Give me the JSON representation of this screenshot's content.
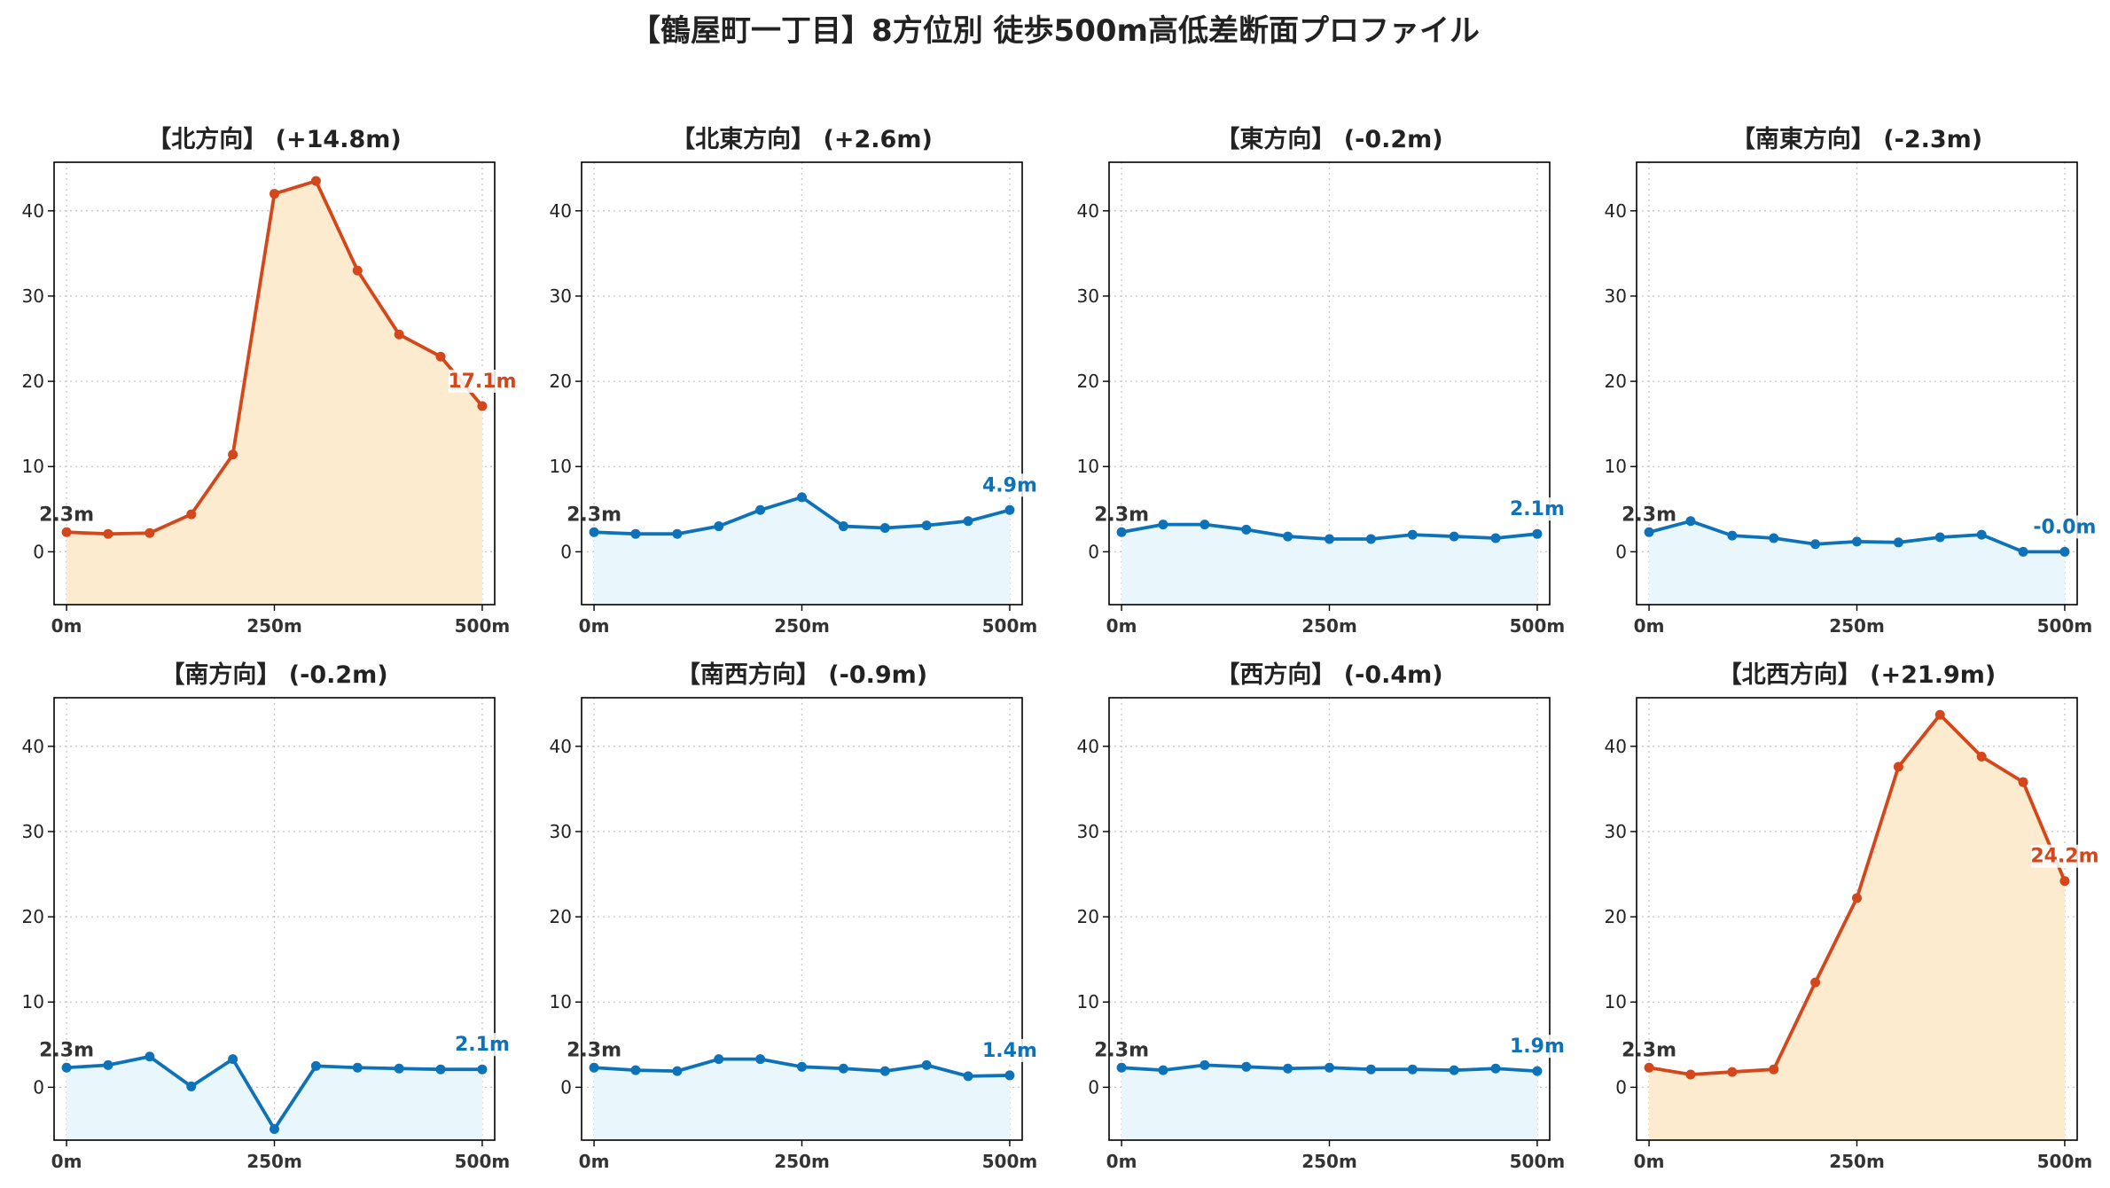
{
  "title": "【鶴屋町一丁目】8方位別 徒歩500m高低差断面プロファイル",
  "colors": {
    "up_line": "#d4471a",
    "up_fill": "#fdebcf",
    "down_line": "#0e72b8",
    "down_fill": "#e9f6fc",
    "grid": "#c8c8c8",
    "start_label": "#333333"
  },
  "chart_data": [
    {
      "type": "area",
      "title": "【北方向】 (+14.8m)",
      "trend": "up",
      "x": [
        0,
        50,
        100,
        150,
        200,
        250,
        300,
        350,
        400,
        450,
        500
      ],
      "values": [
        2.3,
        2.1,
        2.2,
        4.4,
        11.4,
        42.0,
        43.5,
        33.0,
        25.5,
        22.9,
        17.1
      ],
      "x_ticks": [
        0,
        250,
        500
      ],
      "x_tick_labels": [
        "0m",
        "250m",
        "500m"
      ],
      "y_ticks": [
        0,
        10,
        20,
        30,
        40
      ],
      "xlim": [
        -15,
        515
      ],
      "ylim": [
        -6.2,
        45.7
      ],
      "grid": true,
      "start_label": "2.3m",
      "end_label": "17.1m"
    },
    {
      "type": "area",
      "title": "【北東方向】 (+2.6m)",
      "trend": "down",
      "x": [
        0,
        50,
        100,
        150,
        200,
        250,
        300,
        350,
        400,
        450,
        500
      ],
      "values": [
        2.3,
        2.1,
        2.1,
        3.0,
        4.9,
        6.4,
        3.0,
        2.8,
        3.1,
        3.6,
        4.9
      ],
      "x_ticks": [
        0,
        250,
        500
      ],
      "x_tick_labels": [
        "0m",
        "250m",
        "500m"
      ],
      "y_ticks": [
        0,
        10,
        20,
        30,
        40
      ],
      "xlim": [
        -15,
        515
      ],
      "ylim": [
        -6.2,
        45.7
      ],
      "grid": true,
      "start_label": "2.3m",
      "end_label": "4.9m"
    },
    {
      "type": "area",
      "title": "【東方向】 (-0.2m)",
      "trend": "down",
      "x": [
        0,
        50,
        100,
        150,
        200,
        250,
        300,
        350,
        400,
        450,
        500
      ],
      "values": [
        2.3,
        3.2,
        3.2,
        2.6,
        1.8,
        1.5,
        1.5,
        2.0,
        1.8,
        1.6,
        2.1
      ],
      "x_ticks": [
        0,
        250,
        500
      ],
      "x_tick_labels": [
        "0m",
        "250m",
        "500m"
      ],
      "y_ticks": [
        0,
        10,
        20,
        30,
        40
      ],
      "xlim": [
        -15,
        515
      ],
      "ylim": [
        -6.2,
        45.7
      ],
      "grid": true,
      "start_label": "2.3m",
      "end_label": "2.1m"
    },
    {
      "type": "area",
      "title": "【南東方向】 (-2.3m)",
      "trend": "down",
      "x": [
        0,
        50,
        100,
        150,
        200,
        250,
        300,
        350,
        400,
        450,
        500
      ],
      "values": [
        2.3,
        3.6,
        1.9,
        1.6,
        0.9,
        1.2,
        1.1,
        1.7,
        2.0,
        0.0,
        0.0
      ],
      "x_ticks": [
        0,
        250,
        500
      ],
      "x_tick_labels": [
        "0m",
        "250m",
        "500m"
      ],
      "y_ticks": [
        0,
        10,
        20,
        30,
        40
      ],
      "xlim": [
        -15,
        515
      ],
      "ylim": [
        -6.2,
        45.7
      ],
      "grid": true,
      "start_label": "2.3m",
      "end_label": "-0.0m"
    },
    {
      "type": "area",
      "title": "【南方向】 (-0.2m)",
      "trend": "down",
      "x": [
        0,
        50,
        100,
        150,
        200,
        250,
        300,
        350,
        400,
        450,
        500
      ],
      "values": [
        2.3,
        2.6,
        3.6,
        0.1,
        3.3,
        -4.9,
        2.5,
        2.3,
        2.2,
        2.1,
        2.1
      ],
      "x_ticks": [
        0,
        250,
        500
      ],
      "x_tick_labels": [
        "0m",
        "250m",
        "500m"
      ],
      "y_ticks": [
        0,
        10,
        20,
        30,
        40
      ],
      "xlim": [
        -15,
        515
      ],
      "ylim": [
        -6.2,
        45.7
      ],
      "grid": true,
      "start_label": "2.3m",
      "end_label": "2.1m"
    },
    {
      "type": "area",
      "title": "【南西方向】 (-0.9m)",
      "trend": "down",
      "x": [
        0,
        50,
        100,
        150,
        200,
        250,
        300,
        350,
        400,
        450,
        500
      ],
      "values": [
        2.3,
        2.0,
        1.9,
        3.3,
        3.3,
        2.4,
        2.2,
        1.9,
        2.6,
        1.3,
        1.4
      ],
      "x_ticks": [
        0,
        250,
        500
      ],
      "x_tick_labels": [
        "0m",
        "250m",
        "500m"
      ],
      "y_ticks": [
        0,
        10,
        20,
        30,
        40
      ],
      "xlim": [
        -15,
        515
      ],
      "ylim": [
        -6.2,
        45.7
      ],
      "grid": true,
      "start_label": "2.3m",
      "end_label": "1.4m"
    },
    {
      "type": "area",
      "title": "【西方向】 (-0.4m)",
      "trend": "down",
      "x": [
        0,
        50,
        100,
        150,
        200,
        250,
        300,
        350,
        400,
        450,
        500
      ],
      "values": [
        2.3,
        2.0,
        2.6,
        2.4,
        2.2,
        2.3,
        2.1,
        2.1,
        2.0,
        2.2,
        1.9
      ],
      "x_ticks": [
        0,
        250,
        500
      ],
      "x_tick_labels": [
        "0m",
        "250m",
        "500m"
      ],
      "y_ticks": [
        0,
        10,
        20,
        30,
        40
      ],
      "xlim": [
        -15,
        515
      ],
      "ylim": [
        -6.2,
        45.7
      ],
      "grid": true,
      "start_label": "2.3m",
      "end_label": "1.9m"
    },
    {
      "type": "area",
      "title": "【北西方向】 (+21.9m)",
      "trend": "up",
      "x": [
        0,
        50,
        100,
        150,
        200,
        250,
        300,
        350,
        400,
        450,
        500
      ],
      "values": [
        2.3,
        1.5,
        1.8,
        2.1,
        12.3,
        22.2,
        37.6,
        43.7,
        38.8,
        35.8,
        24.2
      ],
      "x_ticks": [
        0,
        250,
        500
      ],
      "x_tick_labels": [
        "0m",
        "250m",
        "500m"
      ],
      "y_ticks": [
        0,
        10,
        20,
        30,
        40
      ],
      "xlim": [
        -15,
        515
      ],
      "ylim": [
        -6.2,
        45.7
      ],
      "grid": true,
      "start_label": "2.3m",
      "end_label": "24.2m"
    }
  ]
}
